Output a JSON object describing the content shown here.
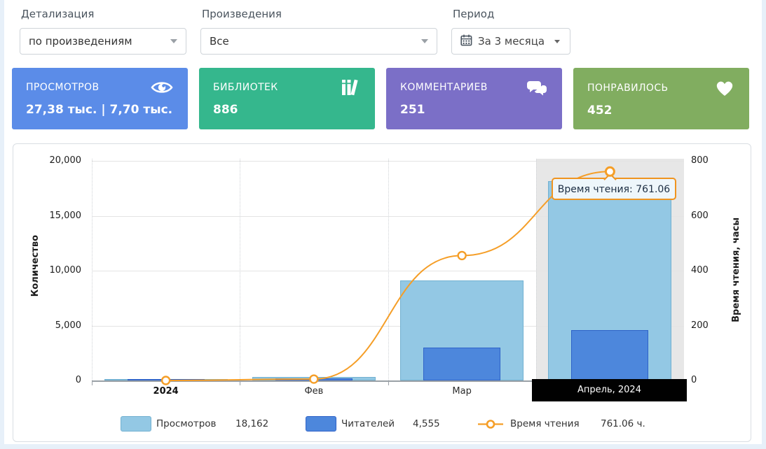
{
  "filters": {
    "detail": {
      "label": "Детализация",
      "value": "по произведениям"
    },
    "works": {
      "label": "Произведения",
      "value": "Все"
    },
    "period": {
      "label": "Период",
      "value": "За 3 месяца"
    }
  },
  "cards": [
    {
      "id": "views",
      "title": "ПРОСМОТРОВ",
      "value": "27,38 тыс. | 7,70 тыс.",
      "icon": "eye-icon",
      "color": "#5b8ce8"
    },
    {
      "id": "libraries",
      "title": "БИБЛИОТЕК",
      "value": "886",
      "icon": "books-icon",
      "color": "#35b78d"
    },
    {
      "id": "comments",
      "title": "КОММЕНТАРИЕВ",
      "value": "251",
      "icon": "comments-icon",
      "color": "#7b6fc7"
    },
    {
      "id": "likes",
      "title": "ПОНРАВИЛОСЬ",
      "value": "452",
      "icon": "heart-icon",
      "color": "#81ad60"
    }
  ],
  "chart_data": {
    "type": "bar+line",
    "categories": [
      "2024",
      "Фев",
      "Мар",
      "Апрель, 2024"
    ],
    "selected_index": 3,
    "series": [
      {
        "name": "Просмотров",
        "type": "bar",
        "axis": "left",
        "color": "#93c8e4",
        "border_color": "#72b1d1",
        "values": [
          100,
          320,
          9100,
          18162
        ]
      },
      {
        "name": "Читателей",
        "type": "bar",
        "axis": "left",
        "color": "#4d87dc",
        "border_color": "#2f63c8",
        "values": [
          60,
          190,
          3000,
          4555
        ]
      },
      {
        "name": "Время чтения",
        "type": "line",
        "axis": "right",
        "color": "#f59e27",
        "values": [
          0,
          5,
          455,
          761.06
        ]
      }
    ],
    "left_axis": {
      "title": "Количество",
      "lim": [
        0,
        20000
      ],
      "tick_values": [
        20000,
        15000,
        10000,
        5000,
        0
      ],
      "tick_labels": [
        "20,000",
        "15,000",
        "10,000",
        "5,000",
        "0"
      ]
    },
    "right_axis": {
      "title": "Время чтения, часы",
      "lim": [
        0,
        800
      ],
      "tick_values": [
        800,
        600,
        400,
        200,
        0
      ],
      "tick_labels": [
        "800",
        "600",
        "400",
        "200",
        "0"
      ]
    },
    "grid": true,
    "legend_position": "bottom",
    "tooltip": {
      "text": "Время чтения: 761.06"
    },
    "legend": [
      {
        "label": "Просмотров",
        "value": "18,162"
      },
      {
        "label": "Читателей",
        "value": "4,555"
      },
      {
        "label": "Время чтения",
        "value": "761.06 ч."
      }
    ]
  }
}
